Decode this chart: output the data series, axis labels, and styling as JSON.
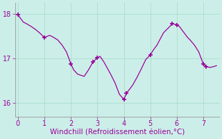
{
  "x": [
    0,
    0.1,
    0.2,
    0.33,
    0.5,
    0.67,
    0.83,
    1.0,
    1.1,
    1.2,
    1.33,
    1.5,
    1.67,
    1.83,
    2.0,
    2.1,
    2.25,
    2.5,
    2.67,
    2.83,
    3.0,
    3.1,
    3.25,
    3.5,
    3.67,
    3.83,
    4.0,
    4.1,
    4.33,
    4.5,
    4.67,
    4.83,
    5.0,
    5.1,
    5.25,
    5.5,
    5.67,
    5.83,
    6.0,
    6.1,
    6.25,
    6.4,
    6.5,
    6.67,
    6.83,
    7.0,
    7.1,
    7.25,
    7.4,
    7.5
  ],
  "y": [
    17.98,
    17.9,
    17.82,
    17.78,
    17.72,
    17.65,
    17.57,
    17.47,
    17.5,
    17.52,
    17.48,
    17.42,
    17.3,
    17.15,
    16.88,
    16.75,
    16.65,
    16.6,
    16.75,
    16.92,
    17.02,
    17.05,
    16.92,
    16.65,
    16.45,
    16.2,
    16.08,
    16.22,
    16.4,
    16.58,
    16.78,
    16.98,
    17.08,
    17.18,
    17.3,
    17.58,
    17.68,
    17.78,
    17.76,
    17.72,
    17.6,
    17.48,
    17.42,
    17.3,
    17.15,
    16.88,
    16.82,
    16.8,
    16.82,
    16.84
  ],
  "marked_x": [
    0,
    1.0,
    2.0,
    2.83,
    3.0,
    4.0,
    4.1,
    5.0,
    5.83,
    6.0,
    7.0,
    7.1
  ],
  "marked_y": [
    17.98,
    17.47,
    16.88,
    16.92,
    17.02,
    16.08,
    16.22,
    17.08,
    17.78,
    17.76,
    16.88,
    16.82
  ],
  "line_color": "#990099",
  "marker_color": "#990099",
  "bg_color": "#cceee8",
  "grid_color": "#aaddcc",
  "xlabel": "Windchill (Refroidissement éolien,°C)",
  "xlabel_color": "#990099",
  "tick_color": "#990099",
  "xlim": [
    -0.1,
    7.6
  ],
  "ylim": [
    15.7,
    18.25
  ],
  "xticks": [
    0,
    1,
    2,
    3,
    4,
    5,
    6,
    7
  ],
  "yticks": [
    16,
    17,
    18
  ],
  "tick_fontsize": 7,
  "xlabel_fontsize": 7.5
}
